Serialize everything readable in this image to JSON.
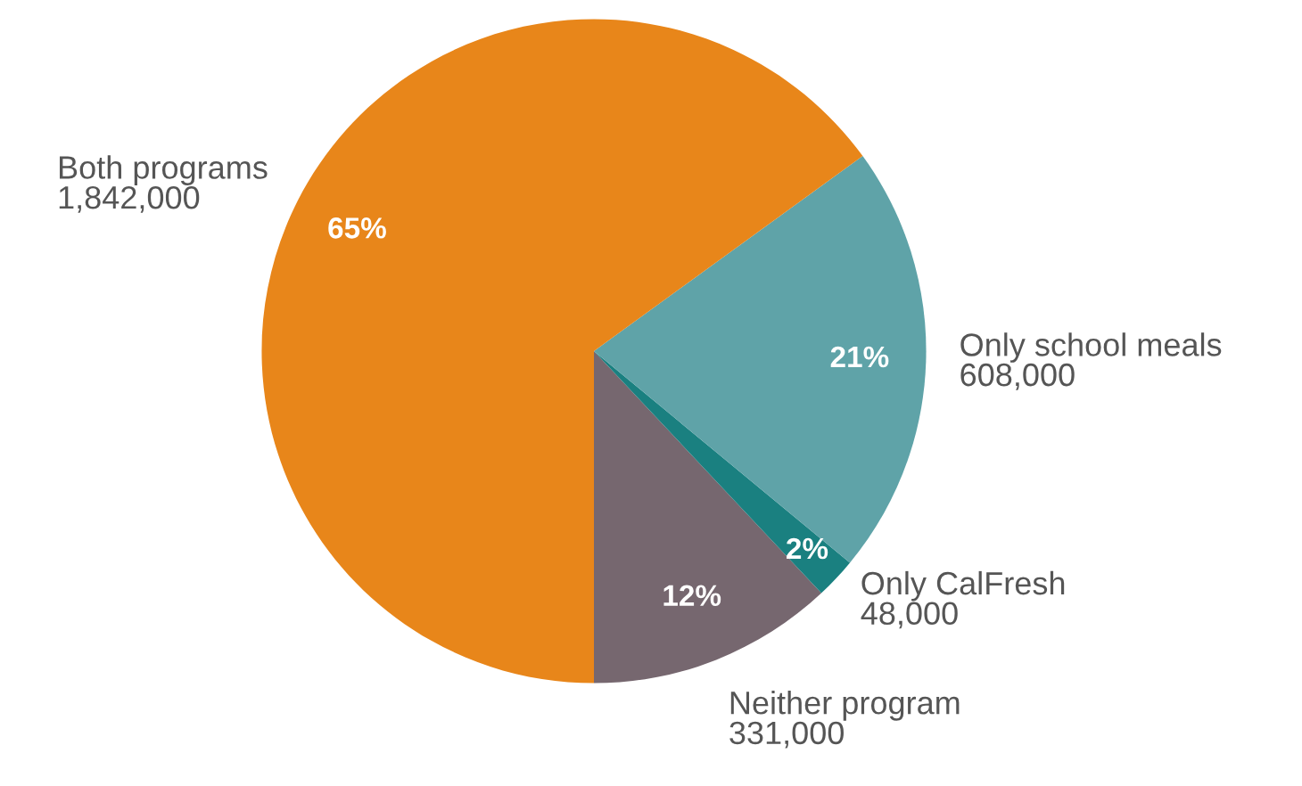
{
  "chart_data": {
    "type": "pie",
    "categories": [
      "Neither program\n331,000",
      "Only CalFresh\n48,000",
      "Only school meals\n608,000",
      "Both programs\n1,842,000"
    ],
    "values": [
      12,
      2,
      21,
      65
    ],
    "value_labels": [
      "12%",
      "2%",
      "21%",
      "65%"
    ],
    "colors": [
      "#76676f",
      "#1a8080",
      "#5fa3a8",
      "#e8861a"
    ]
  }
}
